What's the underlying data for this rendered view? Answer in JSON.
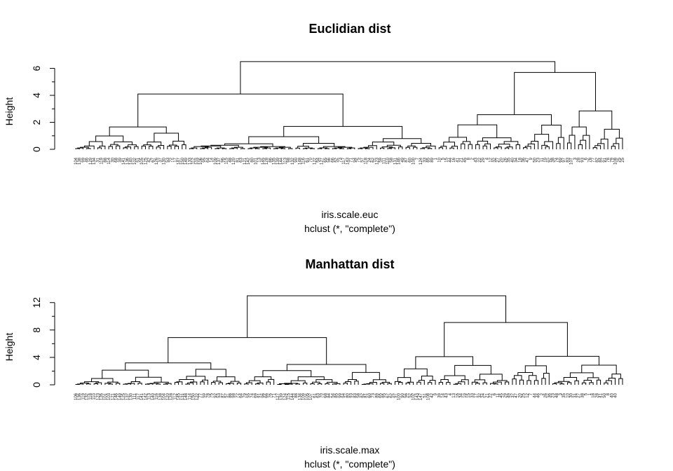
{
  "chart_data": [
    {
      "type": "dendrogram",
      "title": "Euclidian dist",
      "ylabel": "Height",
      "xlabel": "iris.scale.euc",
      "sublabel": "hclust (*, \"complete\")",
      "ylim": [
        0,
        6.6
      ],
      "yticks": [
        0,
        2,
        4,
        6
      ],
      "leaf_count": 150,
      "leaves": [
        "104",
        "138",
        "99",
        "46",
        "129",
        "134",
        "31",
        "119",
        "88",
        "114",
        "30",
        "68",
        "39",
        "141",
        "136",
        "140",
        "102",
        "51",
        "105",
        "125",
        "42",
        "67",
        "126",
        "37",
        "130",
        "53",
        "72",
        "17",
        "147",
        "150",
        "149",
        "133",
        "112",
        "103",
        "106",
        "95",
        "64",
        "14",
        "109",
        "137",
        "96",
        "115",
        "48",
        "120",
        "81",
        "63",
        "121",
        "142",
        "80",
        "101",
        "13",
        "145",
        "128",
        "86",
        "135",
        "139",
        "144",
        "113",
        "98",
        "132",
        "90",
        "148",
        "116",
        "61",
        "70",
        "122",
        "54",
        "127",
        "65",
        "56",
        "66",
        "52",
        "73",
        "117",
        "143",
        "71",
        "94",
        "75",
        "57",
        "118",
        "24",
        "62",
        "123",
        "59",
        "111",
        "110",
        "58",
        "131",
        "146",
        "49",
        "87",
        "60",
        "100",
        "7",
        "124",
        "33",
        "85",
        "89",
        "1",
        "10",
        "5",
        "15",
        "44",
        "16",
        "41",
        "21",
        "45",
        "8",
        "2",
        "43",
        "22",
        "29",
        "4",
        "12",
        "32",
        "27",
        "20",
        "26",
        "35",
        "40",
        "34",
        "18",
        "36",
        "47",
        "9",
        "50",
        "23",
        "11",
        "19",
        "92",
        "38",
        "74",
        "69",
        "97",
        "83",
        "107",
        "3",
        "28",
        "93",
        "6",
        "76",
        "77",
        "82",
        "84",
        "91",
        "78",
        "79",
        "108",
        "25",
        "25"
      ],
      "merges": [
        {
          "x": [
            0.0,
            0.66
          ],
          "h": 4.1
        },
        {
          "x": [
            0.66,
            1.0
          ],
          "h": 5.7
        },
        {
          "x": [
            0.0,
            1.0
          ],
          "h": 6.5
        }
      ]
    },
    {
      "type": "dendrogram",
      "title": "Manhattan dist",
      "ylabel": "Height",
      "xlabel": "iris.scale.max",
      "sublabel": "hclust (*, \"complete\")",
      "ylim": [
        0,
        13.2
      ],
      "yticks": [
        0,
        4,
        8,
        12
      ],
      "leaf_count": 150,
      "leaves": [
        "106",
        "136",
        "119",
        "132",
        "118",
        "110",
        "123",
        "126",
        "101",
        "103",
        "121",
        "146",
        "149",
        "125",
        "137",
        "130",
        "111",
        "117",
        "141",
        "142",
        "113",
        "140",
        "116",
        "138",
        "104",
        "120",
        "128",
        "112",
        "145",
        "131",
        "148",
        "114",
        "150",
        "122",
        "77",
        "59",
        "78",
        "75",
        "92",
        "53",
        "87",
        "57",
        "86",
        "98",
        "72",
        "64",
        "79",
        "55",
        "74",
        "69",
        "91",
        "96",
        "66",
        "76",
        "71",
        "127",
        "139",
        "124",
        "115",
        "144",
        "88",
        "134",
        "109",
        "105",
        "107",
        "61",
        "63",
        "70",
        "68",
        "84",
        "54",
        "85",
        "99",
        "94",
        "80",
        "93",
        "83",
        "58",
        "82",
        "81",
        "60",
        "73",
        "89",
        "65",
        "95",
        "67",
        "62",
        "97",
        "100",
        "90",
        "56",
        "52",
        "102",
        "143",
        "147",
        "51",
        "108",
        "42",
        "9",
        "39",
        "14",
        "43",
        "4",
        "13",
        "16",
        "34",
        "19",
        "15",
        "33",
        "17",
        "32",
        "24",
        "21",
        "22",
        "6",
        "11",
        "45",
        "29",
        "49",
        "37",
        "47",
        "20",
        "25",
        "12",
        "7",
        "44",
        "46",
        "2",
        "26",
        "36",
        "23",
        "48",
        "3",
        "35",
        "10",
        "30",
        "31",
        "27",
        "38",
        "5",
        "1",
        "18",
        "28",
        "41",
        "50",
        "8",
        "40",
        "40"
      ],
      "merges": [
        {
          "x": [
            0.0,
            0.58
          ],
          "h": 6.9
        },
        {
          "x": [
            0.58,
            1.0
          ],
          "h": 9.1
        },
        {
          "x": [
            0.0,
            1.0
          ],
          "h": 13.0
        }
      ]
    }
  ]
}
